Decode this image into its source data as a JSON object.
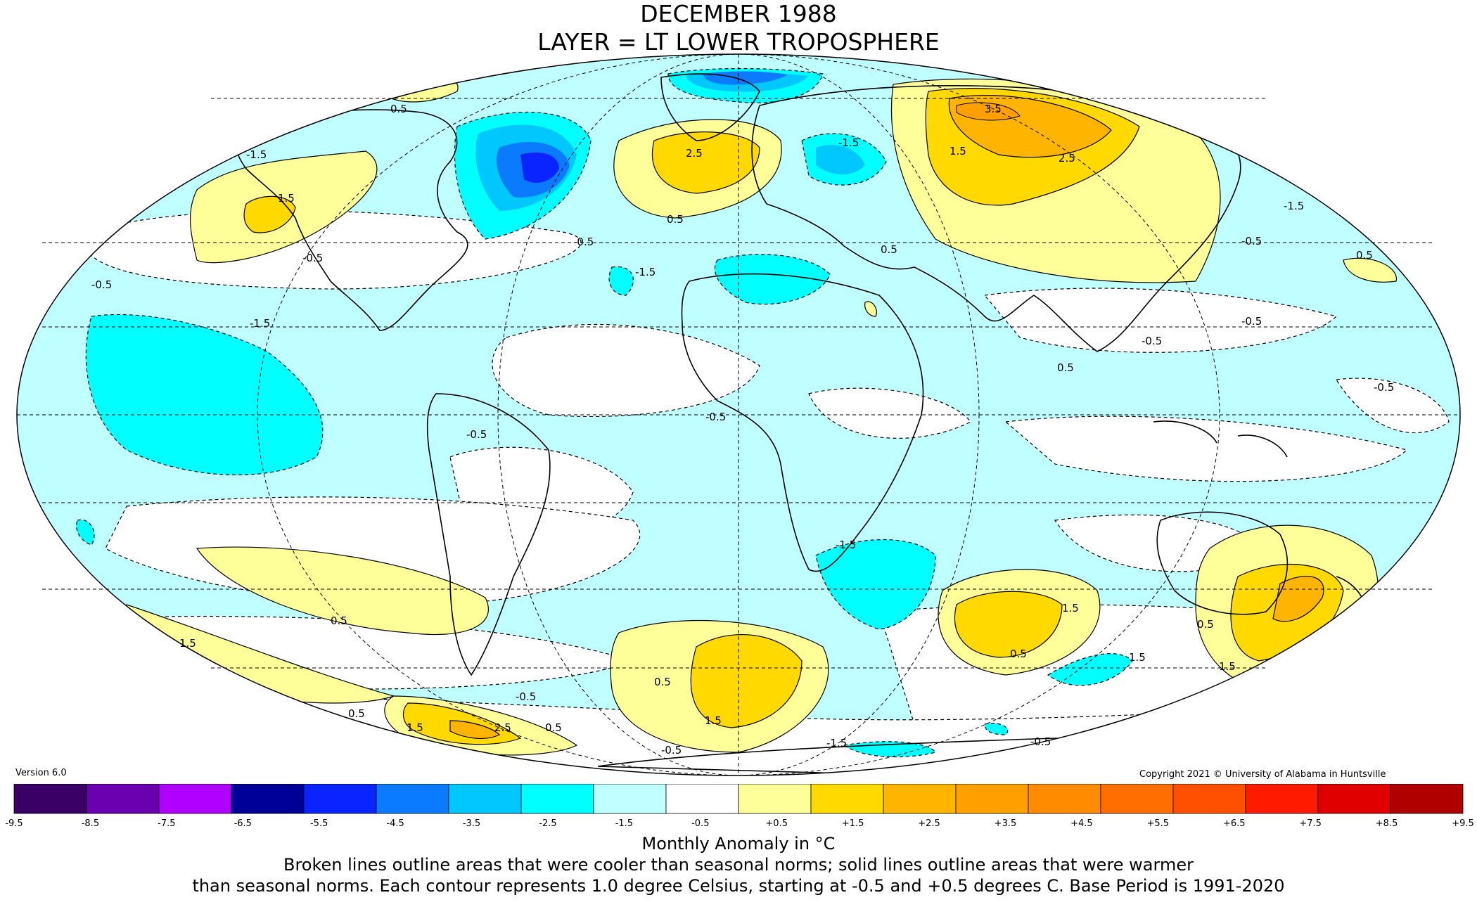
{
  "title": {
    "line1": "DECEMBER 1988",
    "line2": "LAYER = LT LOWER TROPOSPHERE"
  },
  "version": "Version 6.0",
  "copyright": "Copyright 2021 © University of Alabama in Huntsville",
  "caption": {
    "unit": "Monthly Anomaly in °C",
    "line1": "Broken lines outline areas that were cooler than seasonal norms; solid lines outline areas that were warmer",
    "line2": "than seasonal norms. Each contour represents 1.0 degree Celsius, starting at -0.5 and +0.5 degrees C. Base Period is 1991-2020"
  },
  "colorbar": {
    "ticks": [
      "-9.5",
      "-8.5",
      "-7.5",
      "-6.5",
      "-5.5",
      "-4.5",
      "-3.5",
      "-2.5",
      "-1.5",
      "-0.5",
      "+0.5",
      "+1.5",
      "+2.5",
      "+3.5",
      "+4.5",
      "+5.5",
      "+6.5",
      "+7.5",
      "+8.5",
      "+9.5"
    ],
    "colors": [
      "#3a0066",
      "#6a00b0",
      "#b000ff",
      "#000099",
      "#0a24ff",
      "#0a7aff",
      "#00c8ff",
      "#00ffff",
      "#c0ffff",
      "#ffffff",
      "#ffff99",
      "#ffd900",
      "#ffb400",
      "#ffa000",
      "#ff8c00",
      "#ff6e00",
      "#ff5000",
      "#ff1a00",
      "#e00000",
      "#b00000"
    ]
  },
  "map_labels": [
    {
      "id": "l1",
      "text": "2.5"
    },
    {
      "id": "l2",
      "text": "3.5"
    },
    {
      "id": "l3",
      "text": "2.5"
    },
    {
      "id": "l4",
      "text": "1.5"
    },
    {
      "id": "l5",
      "text": "-1.5"
    },
    {
      "id": "l6",
      "text": "-1.5"
    },
    {
      "id": "l7",
      "text": "0.5"
    },
    {
      "id": "l8",
      "text": "-0.5"
    },
    {
      "id": "l9",
      "text": "-0.5"
    },
    {
      "id": "l10",
      "text": "0.5"
    },
    {
      "id": "l11",
      "text": "-1.5"
    },
    {
      "id": "l12",
      "text": "1.5"
    },
    {
      "id": "l13",
      "text": "-0.5"
    },
    {
      "id": "l14",
      "text": "0.5"
    },
    {
      "id": "l15",
      "text": "-0.5"
    },
    {
      "id": "l16",
      "text": "-1.5"
    },
    {
      "id": "l17",
      "text": "-0.5"
    },
    {
      "id": "l18",
      "text": "-0.5"
    },
    {
      "id": "l19",
      "text": "0.5"
    },
    {
      "id": "l20",
      "text": "-0.5"
    },
    {
      "id": "l21",
      "text": "-1.5"
    },
    {
      "id": "l22",
      "text": "1.5"
    },
    {
      "id": "l23",
      "text": "0.5"
    },
    {
      "id": "l24",
      "text": "1.5"
    },
    {
      "id": "l25",
      "text": "0.5"
    },
    {
      "id": "l26",
      "text": "1.5"
    },
    {
      "id": "l27",
      "text": "1.5"
    },
    {
      "id": "l28",
      "text": "0.5"
    },
    {
      "id": "l29",
      "text": "1.5"
    },
    {
      "id": "l30",
      "text": "2.5"
    },
    {
      "id": "l31",
      "text": "0.5"
    },
    {
      "id": "l32",
      "text": "-0.5"
    },
    {
      "id": "l33",
      "text": "0.5"
    },
    {
      "id": "l34",
      "text": "1.5"
    },
    {
      "id": "l35",
      "text": "-0.5"
    },
    {
      "id": "l36",
      "text": "-1.5"
    },
    {
      "id": "l37",
      "text": "0.5"
    },
    {
      "id": "l38",
      "text": "-0.5"
    },
    {
      "id": "l39",
      "text": "-0.5"
    },
    {
      "id": "l40",
      "text": "-1.5"
    },
    {
      "id": "l41",
      "text": "0.5"
    },
    {
      "id": "l42",
      "text": "-0.5"
    }
  ]
}
